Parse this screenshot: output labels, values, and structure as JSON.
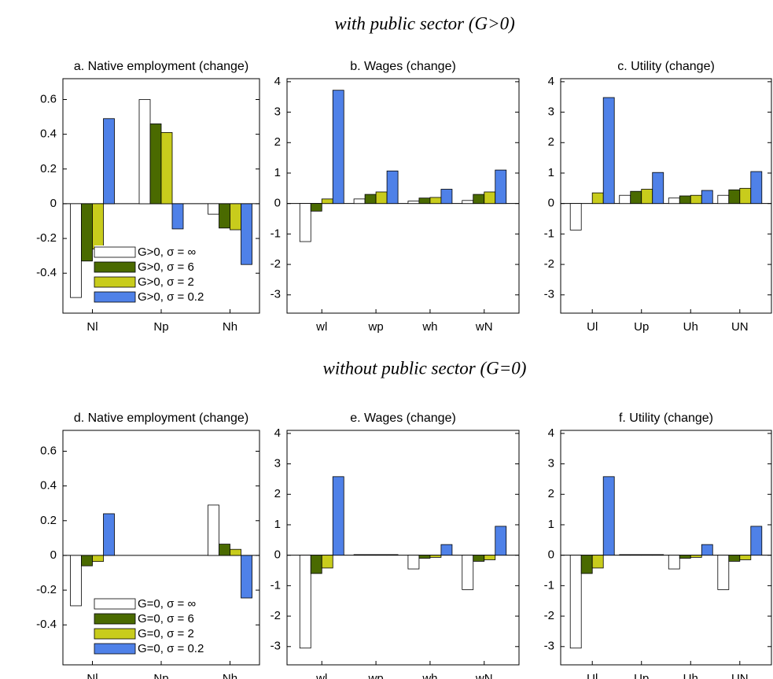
{
  "headings": [
    "with public sector (G>0)",
    "without public sector (G=0)"
  ],
  "chart_data": [
    {
      "type": "bar",
      "title": "a. Native employment (change)",
      "categories": [
        "Nl",
        "Np",
        "Nh"
      ],
      "ylim": [
        -0.63,
        0.72
      ],
      "yticks": [
        -0.4,
        -0.2,
        0,
        0.2,
        0.4,
        0.6
      ],
      "legend": "lower left",
      "series": [
        {
          "name": "G>0, σ = ∞",
          "color": "#ffffff",
          "values": [
            -0.54,
            0.6,
            -0.06
          ]
        },
        {
          "name": "G>0, σ = 6",
          "color": "#4a6a00",
          "values": [
            -0.33,
            0.46,
            -0.14
          ]
        },
        {
          "name": "G>0, σ = 2",
          "color": "#c8cc1c",
          "values": [
            -0.26,
            0.41,
            -0.15
          ]
        },
        {
          "name": "G>0, σ = 0.2",
          "color": "#4f81e8",
          "values": [
            0.49,
            -0.145,
            -0.35
          ]
        }
      ]
    },
    {
      "type": "bar",
      "title": "b. Wages (change)",
      "categories": [
        "wl",
        "wp",
        "wh",
        "wN"
      ],
      "ylim": [
        -3.6,
        4.1
      ],
      "yticks": [
        -3,
        -2,
        -1,
        0,
        1,
        2,
        3,
        4
      ],
      "series": [
        {
          "name": "G>0, σ = ∞",
          "color": "#ffffff",
          "values": [
            -1.25,
            0.15,
            0.08,
            0.1
          ]
        },
        {
          "name": "G>0, σ = 6",
          "color": "#4a6a00",
          "values": [
            -0.25,
            0.3,
            0.18,
            0.3
          ]
        },
        {
          "name": "G>0, σ = 2",
          "color": "#c8cc1c",
          "values": [
            0.15,
            0.38,
            0.2,
            0.38
          ]
        },
        {
          "name": "G>0, σ = 0.2",
          "color": "#4f81e8",
          "values": [
            3.72,
            1.07,
            0.47,
            1.1
          ]
        }
      ]
    },
    {
      "type": "bar",
      "title": "c. Utility (change)",
      "categories": [
        "Ul",
        "Up",
        "Uh",
        "UN"
      ],
      "ylim": [
        -3.6,
        4.1
      ],
      "yticks": [
        -3,
        -2,
        -1,
        0,
        1,
        2,
        3,
        4
      ],
      "series": [
        {
          "name": "G>0, σ = ∞",
          "color": "#ffffff",
          "values": [
            -0.87,
            0.27,
            0.18,
            0.27
          ]
        },
        {
          "name": "G>0, σ = 6",
          "color": "#4a6a00",
          "values": [
            0,
            0.4,
            0.25,
            0.45
          ]
        },
        {
          "name": "G>0, σ = 2",
          "color": "#c8cc1c",
          "values": [
            0.35,
            0.47,
            0.27,
            0.5
          ]
        },
        {
          "name": "G>0, σ = 0.2",
          "color": "#4f81e8",
          "values": [
            3.48,
            1.02,
            0.43,
            1.05
          ]
        }
      ]
    },
    {
      "type": "bar",
      "title": "d. Native employment (change)",
      "categories": [
        "Nl",
        "Np",
        "Nh"
      ],
      "ylim": [
        -0.63,
        0.72
      ],
      "yticks": [
        -0.4,
        -0.2,
        0,
        0.2,
        0.4,
        0.6
      ],
      "legend": "lower left",
      "series": [
        {
          "name": "G=0, σ = ∞",
          "color": "#ffffff",
          "values": [
            -0.29,
            0,
            0.29
          ]
        },
        {
          "name": "G=0, σ = 6",
          "color": "#4a6a00",
          "values": [
            -0.06,
            0,
            0.065
          ]
        },
        {
          "name": "G=0, σ = 2",
          "color": "#c8cc1c",
          "values": [
            -0.035,
            0,
            0.035
          ]
        },
        {
          "name": "G=0, σ = 0.2",
          "color": "#4f81e8",
          "values": [
            0.24,
            0,
            -0.245
          ]
        }
      ]
    },
    {
      "type": "bar",
      "title": "e. Wages (change)",
      "categories": [
        "wl",
        "wp",
        "wh",
        "wN"
      ],
      "ylim": [
        -3.6,
        4.1
      ],
      "yticks": [
        -3,
        -2,
        -1,
        0,
        1,
        2,
        3,
        4
      ],
      "series": [
        {
          "name": "G=0, σ = ∞",
          "color": "#ffffff",
          "values": [
            -3.05,
            0.02,
            -0.45,
            -1.13
          ]
        },
        {
          "name": "G=0, σ = 6",
          "color": "#4a6a00",
          "values": [
            -0.6,
            0.02,
            -0.1,
            -0.2
          ]
        },
        {
          "name": "G=0, σ = 2",
          "color": "#c8cc1c",
          "values": [
            -0.42,
            0.02,
            -0.07,
            -0.15
          ]
        },
        {
          "name": "G=0, σ = 0.2",
          "color": "#4f81e8",
          "values": [
            2.58,
            0.02,
            0.35,
            0.95
          ]
        }
      ]
    },
    {
      "type": "bar",
      "title": "f. Utility (change)",
      "categories": [
        "Ul",
        "Up",
        "Uh",
        "UN"
      ],
      "ylim": [
        -3.6,
        4.1
      ],
      "yticks": [
        -3,
        -2,
        -1,
        0,
        1,
        2,
        3,
        4
      ],
      "series": [
        {
          "name": "G=0, σ = ∞",
          "color": "#ffffff",
          "values": [
            -3.05,
            0.02,
            -0.45,
            -1.13
          ]
        },
        {
          "name": "G=0, σ = 6",
          "color": "#4a6a00",
          "values": [
            -0.6,
            0.02,
            -0.1,
            -0.2
          ]
        },
        {
          "name": "G=0, σ = 2",
          "color": "#c8cc1c",
          "values": [
            -0.42,
            0.02,
            -0.07,
            -0.15
          ]
        },
        {
          "name": "G=0, σ = 0.2",
          "color": "#4f81e8",
          "values": [
            2.58,
            0.02,
            0.35,
            0.95
          ]
        }
      ]
    }
  ]
}
